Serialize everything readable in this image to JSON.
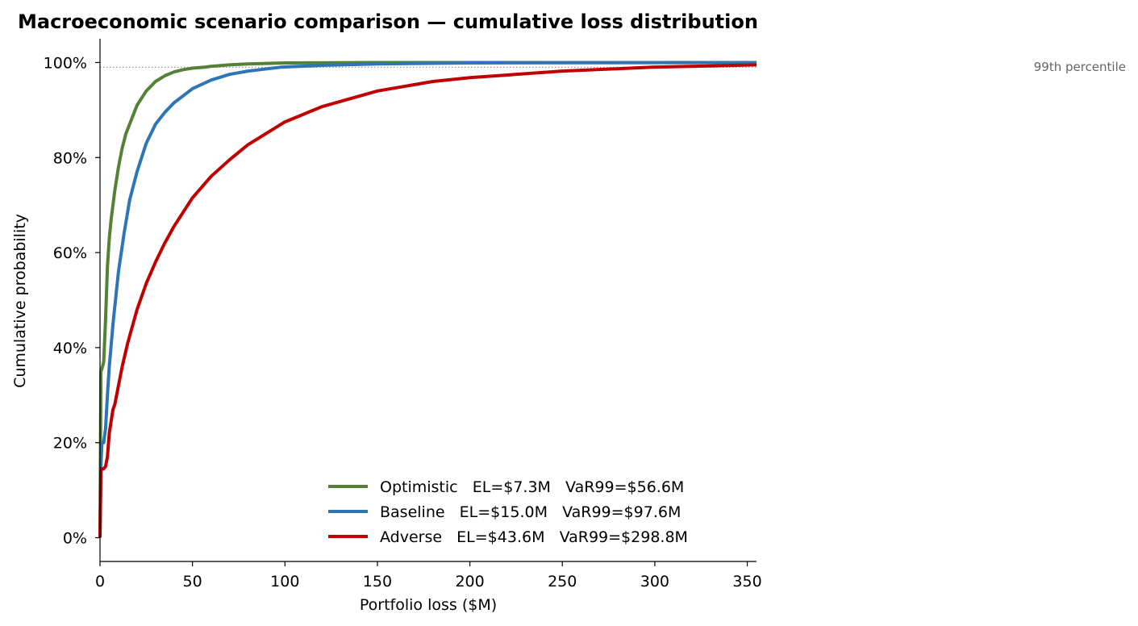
{
  "chart_data": {
    "type": "line",
    "title": "Macroeconomic scenario comparison — cumulative loss distribution",
    "xlabel": "Portfolio loss  ($M)",
    "ylabel": "Cumulative probability",
    "xlim": [
      0,
      355
    ],
    "ylim": [
      -0.05,
      1.05
    ],
    "x_ticks": [
      0,
      50,
      100,
      150,
      200,
      250,
      300,
      350
    ],
    "x_tick_labels": [
      "0",
      "50",
      "100",
      "150",
      "200",
      "250",
      "300",
      "350"
    ],
    "y_ticks": [
      0,
      0.2,
      0.4,
      0.6,
      0.8,
      1.0
    ],
    "y_tick_labels": [
      "0%",
      "20%",
      "40%",
      "60%",
      "80%",
      "100%"
    ],
    "grid": false,
    "legend_position": "lower-right",
    "reference_line": {
      "y": 0.99,
      "label": "99th percentile",
      "color": "#999999"
    },
    "series": [
      {
        "name": "Optimistic   EL=$7.3M   VaR99=$56.6M",
        "color": "#538135",
        "x": [
          0,
          0.5,
          1,
          2,
          3,
          4,
          5,
          6,
          8,
          10,
          12,
          14,
          17,
          20,
          25,
          30,
          35,
          40,
          45,
          50,
          56.6,
          60,
          70,
          80,
          100,
          150,
          200,
          355
        ],
        "y": [
          0.0,
          0.35,
          0.355,
          0.37,
          0.46,
          0.57,
          0.63,
          0.67,
          0.73,
          0.78,
          0.82,
          0.85,
          0.88,
          0.91,
          0.94,
          0.96,
          0.972,
          0.98,
          0.985,
          0.988,
          0.99,
          0.992,
          0.995,
          0.997,
          0.999,
          1.0,
          1.0,
          1.0
        ]
      },
      {
        "name": "Baseline   EL=$15.0M   VaR99=$97.6M",
        "color": "#2E75B6",
        "x": [
          0,
          0.5,
          1,
          2,
          3,
          4,
          5,
          7,
          10,
          13,
          16,
          20,
          25,
          30,
          35,
          40,
          50,
          60,
          70,
          80,
          97.6,
          120,
          150,
          200,
          355
        ],
        "y": [
          0.0,
          0.15,
          0.2,
          0.2,
          0.23,
          0.3,
          0.36,
          0.45,
          0.56,
          0.64,
          0.71,
          0.77,
          0.83,
          0.87,
          0.895,
          0.915,
          0.945,
          0.963,
          0.975,
          0.982,
          0.99,
          0.994,
          0.997,
          0.999,
          1.0
        ]
      },
      {
        "name": "Adverse   EL=$43.6M   VaR99=$298.8M",
        "color": "#C00000",
        "x": [
          0,
          0.5,
          1,
          2,
          3,
          4,
          5,
          7,
          8,
          10,
          12,
          15,
          20,
          25,
          30,
          35,
          40,
          50,
          60,
          70,
          80,
          100,
          120,
          150,
          180,
          200,
          250,
          298.8,
          355
        ],
        "y": [
          0.0,
          0.14,
          0.145,
          0.145,
          0.15,
          0.17,
          0.22,
          0.27,
          0.28,
          0.32,
          0.36,
          0.41,
          0.48,
          0.535,
          0.58,
          0.62,
          0.655,
          0.715,
          0.76,
          0.795,
          0.827,
          0.875,
          0.907,
          0.94,
          0.96,
          0.968,
          0.982,
          0.99,
          0.995
        ]
      }
    ]
  }
}
